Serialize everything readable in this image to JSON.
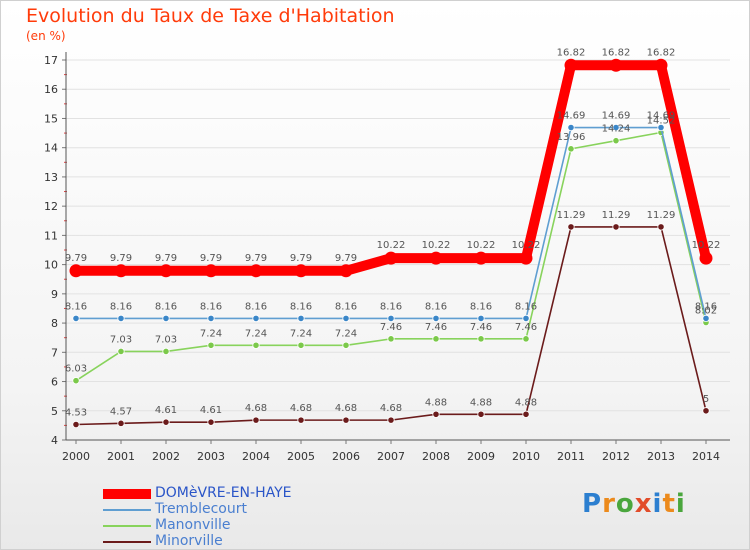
{
  "chart_data": {
    "type": "line",
    "title": "Evolution du Taux de Taxe d'Habitation",
    "unit_label": "(en %)",
    "x": [
      "2000",
      "2001",
      "2002",
      "2003",
      "2004",
      "2005",
      "2006",
      "2007",
      "2008",
      "2009",
      "2010",
      "2011",
      "2012",
      "2013",
      "2014"
    ],
    "ylim": [
      4,
      17
    ],
    "yticks": [
      "4",
      "5",
      "6",
      "7",
      "8",
      "9",
      "10",
      "11",
      "12",
      "13",
      "14",
      "15",
      "16",
      "17"
    ],
    "series": [
      {
        "name": "DOMèVRE-EN-HAYE",
        "color": "#ff0000",
        "values": [
          9.79,
          9.79,
          9.79,
          9.79,
          9.79,
          9.79,
          9.79,
          10.22,
          10.22,
          10.22,
          10.22,
          16.82,
          16.82,
          16.82,
          10.22
        ],
        "labels": [
          "9.79",
          "9.79",
          "9.79",
          "9.79",
          "9.79",
          "9.79",
          "9.79",
          "10.22",
          "10.22",
          "10.22",
          "10.22",
          "16.82",
          "16.82",
          "16.82",
          "10.22"
        ]
      },
      {
        "name": "Tremblecourt",
        "color": "#5f9ed1",
        "values": [
          8.16,
          8.16,
          8.16,
          8.16,
          8.16,
          8.16,
          8.16,
          8.16,
          8.16,
          8.16,
          8.16,
          14.69,
          14.69,
          14.69,
          8.16
        ],
        "labels": [
          "8.16",
          "8.16",
          "8.16",
          "8.16",
          "8.16",
          "8.16",
          "8.16",
          "8.16",
          "8.16",
          "8.16",
          "8.16",
          "14.69",
          "14.69",
          "14.69",
          "8.16"
        ]
      },
      {
        "name": "Manonville",
        "color": "#88d35c",
        "values": [
          6.03,
          7.03,
          7.03,
          7.24,
          7.24,
          7.24,
          7.24,
          7.46,
          7.46,
          7.46,
          7.46,
          13.96,
          14.24,
          14.52,
          8.02
        ],
        "labels": [
          "6.03",
          "7.03",
          "7.03",
          "7.24",
          "7.24",
          "7.24",
          "7.24",
          "7.46",
          "7.46",
          "7.46",
          "7.46",
          "13.96",
          "14.24",
          "14.52",
          "8.02"
        ]
      },
      {
        "name": "Minorville",
        "color": "#6b1b1b",
        "values": [
          4.53,
          4.57,
          4.61,
          4.61,
          4.68,
          4.68,
          4.68,
          4.68,
          4.88,
          4.88,
          4.88,
          11.29,
          11.29,
          11.29,
          5
        ],
        "labels": [
          "4.53",
          "4.57",
          "4.61",
          "4.61",
          "4.68",
          "4.68",
          "4.68",
          "4.68",
          "4.88",
          "4.88",
          "4.88",
          "11.29",
          "11.29",
          "11.29",
          "5"
        ]
      }
    ],
    "legend_position": "bottom-left"
  },
  "brand": {
    "text": "Proxiti",
    "colors": [
      "#2c7fd0",
      "#ec8a1c",
      "#4aa63d",
      "#e24c2a"
    ]
  }
}
